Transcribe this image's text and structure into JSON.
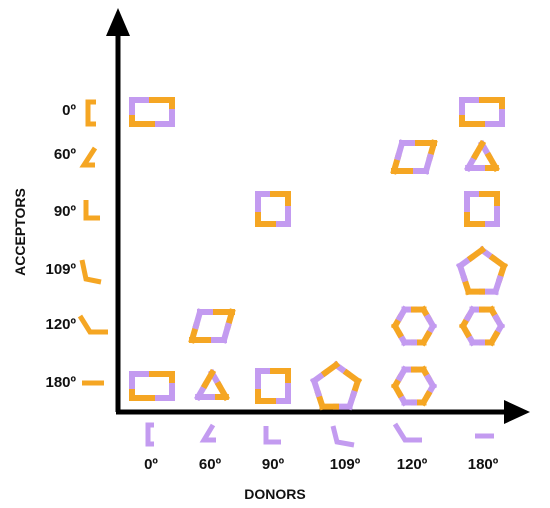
{
  "axes": {
    "x_title": "DONORS",
    "y_title": "ACCEPTORS"
  },
  "donors": [
    "0º",
    "60º",
    "90º",
    "109º",
    "120º",
    "180º"
  ],
  "acceptors": [
    "0º",
    "60º",
    "90º",
    "109º",
    "120º",
    "180º"
  ],
  "colors": {
    "donor": "#c39bf0",
    "acceptor": "#f5a623",
    "axis": "#000000"
  },
  "cages": [
    {
      "donor": "0º",
      "acceptor": "0º",
      "shape": "rectangle"
    },
    {
      "donor": "0º",
      "acceptor": "180º",
      "shape": "rectangle"
    },
    {
      "donor": "60º",
      "acceptor": "120º",
      "shape": "rhombus"
    },
    {
      "donor": "60º",
      "acceptor": "180º",
      "shape": "triangle"
    },
    {
      "donor": "90º",
      "acceptor": "90º",
      "shape": "square"
    },
    {
      "donor": "90º",
      "acceptor": "180º",
      "shape": "square"
    },
    {
      "donor": "109º",
      "acceptor": "180º",
      "shape": "pentagon"
    },
    {
      "donor": "120º",
      "acceptor": "60º",
      "shape": "rhombus"
    },
    {
      "donor": "120º",
      "acceptor": "120º",
      "shape": "hexagon"
    },
    {
      "donor": "120º",
      "acceptor": "180º",
      "shape": "hexagon"
    },
    {
      "donor": "180º",
      "acceptor": "0º",
      "shape": "rectangle"
    },
    {
      "donor": "180º",
      "acceptor": "60º",
      "shape": "triangle"
    },
    {
      "donor": "180º",
      "acceptor": "90º",
      "shape": "square"
    },
    {
      "donor": "180º",
      "acceptor": "109º",
      "shape": "pentagon"
    },
    {
      "donor": "180º",
      "acceptor": "120º",
      "shape": "hexagon"
    }
  ]
}
